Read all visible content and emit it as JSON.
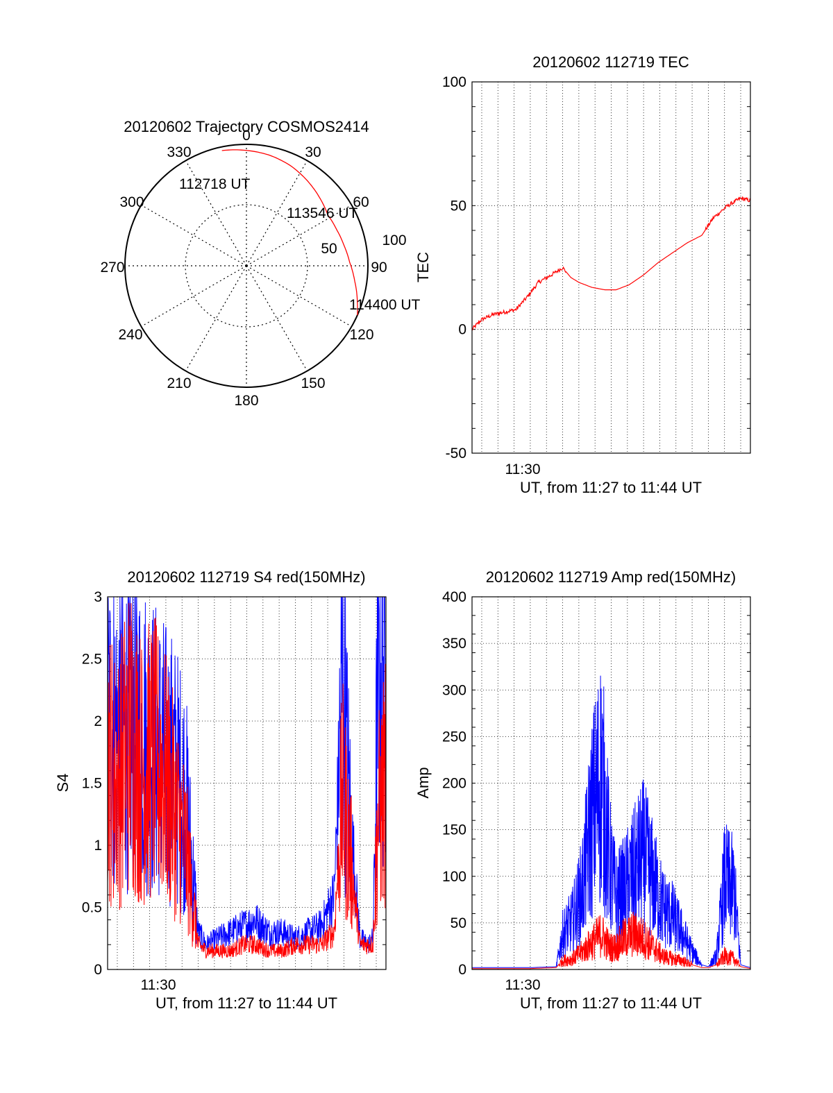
{
  "chart_data": [
    {
      "type": "polar",
      "title": "20120602 Trajectory COSMOS2414",
      "azimuth_labels": [
        "0",
        "30",
        "60",
        "90",
        "120",
        "150",
        "180",
        "210",
        "240",
        "270",
        "300",
        "330"
      ],
      "elevation_labels": [
        "50",
        "100"
      ],
      "annotations": [
        "112718 UT",
        "113546 UT",
        "114400 UT"
      ],
      "colors": {
        "track": "#ff0000",
        "frame": "#000000"
      },
      "grid": "dotted",
      "series": [
        {
          "az": [
            -12,
            0,
            12,
            24,
            36,
            48,
            58,
            68,
            78,
            88,
            98,
            108,
            114
          ],
          "zenith": [
            97,
            95,
            93,
            90,
            86,
            82,
            79,
            80,
            82,
            85,
            90,
            96,
            100
          ]
        }
      ]
    },
    {
      "type": "line",
      "title": "20120602 112719 TEC",
      "ylabel": "TEC",
      "xlabel": "UT, from 11:27 to 11:44 UT",
      "x_ticks": [
        "11:30"
      ],
      "ylim": [
        -50,
        100
      ],
      "y_ticks": [
        "100",
        "50",
        "0",
        "-50"
      ],
      "x_range_min": [
        27.4,
        44.6
      ],
      "grid": true,
      "series": [
        {
          "color": "#ff0000",
          "x_min": [
            27.4,
            28.0,
            28.7,
            29.4,
            30.1,
            30.8,
            31.5,
            32.3,
            33.0,
            33.5,
            34.0,
            34.8,
            35.6,
            36.3,
            37.1,
            38.0,
            38.9,
            39.8,
            40.7,
            41.6,
            42.3,
            43.2,
            44.0,
            44.6
          ],
          "y": [
            0,
            4,
            6,
            7,
            8,
            13,
            19,
            22,
            25,
            21,
            19,
            17,
            16,
            16,
            18,
            22,
            27,
            31,
            35,
            38,
            45,
            50,
            53,
            52
          ]
        }
      ]
    },
    {
      "type": "line",
      "title": "20120602 112719 S4 red(150MHz)",
      "ylabel": "S4",
      "xlabel": "UT, from 11:27 to 11:44 UT",
      "x_ticks": [
        "11:30"
      ],
      "ylim": [
        0,
        3
      ],
      "y_ticks": [
        "0",
        "0.5",
        "1",
        "1.5",
        "2",
        "2.5",
        "3"
      ],
      "x_range_min": [
        27.4,
        44.6
      ],
      "grid": true,
      "series": [
        {
          "color": "#0000ff",
          "x_min": [
            27.4,
            28.0,
            28.8,
            29.5,
            30.2,
            30.8,
            31.5,
            32.2,
            33.0,
            33.5,
            34.2,
            35.0,
            35.8,
            36.5,
            37.4,
            38.2,
            39.0,
            39.8,
            40.6,
            41.4,
            41.9,
            42.4,
            43.0,
            43.5,
            43.8,
            44.1,
            44.6
          ],
          "y": [
            2.0,
            1.9,
            2.0,
            1.9,
            1.8,
            1.7,
            1.6,
            1.4,
            0.3,
            0.2,
            0.25,
            0.3,
            0.35,
            0.4,
            0.3,
            0.3,
            0.25,
            0.3,
            0.35,
            0.6,
            2.3,
            1.2,
            0.25,
            0.2,
            0.25,
            2.3,
            2.5
          ]
        },
        {
          "color": "#ff0000",
          "x_min": [
            27.4,
            28.0,
            28.8,
            29.5,
            30.2,
            30.8,
            31.5,
            32.2,
            33.0,
            33.5,
            34.2,
            35.0,
            35.8,
            36.5,
            37.4,
            38.2,
            39.0,
            39.8,
            40.6,
            41.4,
            41.9,
            42.4,
            43.0,
            43.5,
            43.8,
            44.1,
            44.6
          ],
          "y": [
            1.7,
            1.5,
            1.9,
            1.6,
            1.7,
            1.6,
            1.3,
            1.0,
            0.2,
            0.15,
            0.15,
            0.15,
            0.2,
            0.2,
            0.15,
            0.15,
            0.2,
            0.2,
            0.2,
            0.3,
            1.4,
            0.9,
            0.2,
            0.2,
            0.2,
            1.2,
            1.5
          ]
        }
      ]
    },
    {
      "type": "line",
      "title": "20120602 112719 Amp red(150MHz)",
      "ylabel": "Amp",
      "xlabel": "UT, from 11:27 to 11:44 UT",
      "x_ticks": [
        "11:30"
      ],
      "ylim": [
        0,
        400
      ],
      "y_ticks": [
        "0",
        "50",
        "100",
        "150",
        "200",
        "250",
        "300",
        "350",
        "400"
      ],
      "x_range_min": [
        27.4,
        44.6
      ],
      "grid": true,
      "series": [
        {
          "color": "#0000ff",
          "x_min": [
            27.4,
            29.0,
            31.0,
            32.6,
            33.0,
            33.6,
            34.2,
            34.8,
            35.4,
            35.9,
            36.3,
            36.8,
            37.4,
            38.0,
            38.6,
            39.2,
            39.8,
            40.4,
            41.0,
            41.6,
            42.0,
            42.5,
            43.0,
            43.6,
            44.0,
            44.6
          ],
          "y": [
            2,
            2,
            2,
            3,
            40,
            55,
            90,
            170,
            220,
            120,
            80,
            90,
            110,
            130,
            100,
            70,
            60,
            40,
            20,
            5,
            3,
            15,
            100,
            90,
            5,
            2
          ]
        },
        {
          "color": "#ff0000",
          "x_min": [
            27.4,
            29.0,
            31.0,
            32.6,
            33.0,
            33.6,
            34.2,
            34.8,
            35.4,
            35.9,
            36.3,
            36.8,
            37.4,
            38.0,
            38.6,
            39.2,
            39.8,
            40.4,
            41.0,
            41.6,
            42.0,
            42.5,
            43.0,
            43.6,
            44.0,
            44.6
          ],
          "y": [
            1,
            1,
            1,
            2,
            10,
            12,
            20,
            30,
            40,
            25,
            25,
            35,
            40,
            35,
            25,
            15,
            12,
            10,
            5,
            2,
            2,
            5,
            15,
            12,
            3,
            1
          ]
        }
      ]
    }
  ]
}
